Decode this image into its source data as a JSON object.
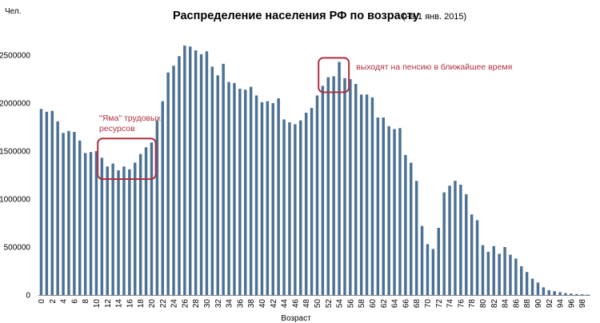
{
  "chart_data": {
    "type": "bar",
    "title": "Распределение населения РФ по возрасту",
    "subtitle": "(на 1 янв. 2015)",
    "xlabel": "Возраст",
    "ylabel": "Чел.",
    "ylim": [
      0,
      3000000
    ],
    "yticks": [
      "0",
      "500000",
      "1000000",
      "1500000",
      "2000000",
      "2500000"
    ],
    "grid": false,
    "bar_color": "#4a7194",
    "categories": [
      "0",
      "1",
      "2",
      "3",
      "4",
      "5",
      "6",
      "7",
      "8",
      "9",
      "10",
      "11",
      "12",
      "13",
      "14",
      "15",
      "16",
      "17",
      "18",
      "19",
      "20",
      "21",
      "22",
      "23",
      "24",
      "25",
      "26",
      "27",
      "28",
      "29",
      "30",
      "31",
      "32",
      "33",
      "34",
      "35",
      "36",
      "37",
      "38",
      "39",
      "40",
      "41",
      "42",
      "43",
      "44",
      "45",
      "46",
      "47",
      "48",
      "49",
      "50",
      "51",
      "52",
      "53",
      "54",
      "55",
      "56",
      "57",
      "58",
      "59",
      "60",
      "61",
      "62",
      "63",
      "64",
      "65",
      "66",
      "67",
      "68",
      "69",
      "70",
      "71",
      "72",
      "73",
      "74",
      "75",
      "76",
      "77",
      "78",
      "79",
      "80",
      "81",
      "82",
      "83",
      "84",
      "85",
      "86",
      "87",
      "88",
      "89",
      "90",
      "91",
      "92",
      "93",
      "94",
      "95",
      "96",
      "97",
      "98",
      "99"
    ],
    "values": [
      1940000,
      1910000,
      1920000,
      1810000,
      1690000,
      1710000,
      1700000,
      1610000,
      1480000,
      1490000,
      1500000,
      1430000,
      1340000,
      1370000,
      1300000,
      1340000,
      1310000,
      1380000,
      1470000,
      1540000,
      1590000,
      1820000,
      2020000,
      2320000,
      2390000,
      2490000,
      2600000,
      2590000,
      2550000,
      2510000,
      2540000,
      2380000,
      2290000,
      2410000,
      2220000,
      2210000,
      2150000,
      2140000,
      2170000,
      2080000,
      2010000,
      2020000,
      2000000,
      2050000,
      1830000,
      1800000,
      1780000,
      1820000,
      1900000,
      1950000,
      2080000,
      2180000,
      2270000,
      2280000,
      2430000,
      2260000,
      2250000,
      2200000,
      2090000,
      2090000,
      2060000,
      1850000,
      1850000,
      1760000,
      1730000,
      1740000,
      1460000,
      1380000,
      1190000,
      720000,
      530000,
      480000,
      700000,
      1070000,
      1140000,
      1190000,
      1150000,
      1050000,
      840000,
      780000,
      520000,
      450000,
      510000,
      430000,
      500000,
      420000,
      380000,
      300000,
      240000,
      170000,
      130000,
      80000,
      50000,
      40000,
      30000,
      20000,
      15000,
      10000,
      8000,
      5000
    ],
    "annotations": [
      {
        "label": "\"Яма\" трудовых ресурсов",
        "line1": "\"Яма\" трудовых",
        "line2": "ресурсов",
        "from": 11,
        "to": 20,
        "color": "#b03040"
      },
      {
        "label": "выходят на пенсию в ближайшее время",
        "from": 51,
        "to": 55,
        "color": "#b03040"
      }
    ]
  }
}
